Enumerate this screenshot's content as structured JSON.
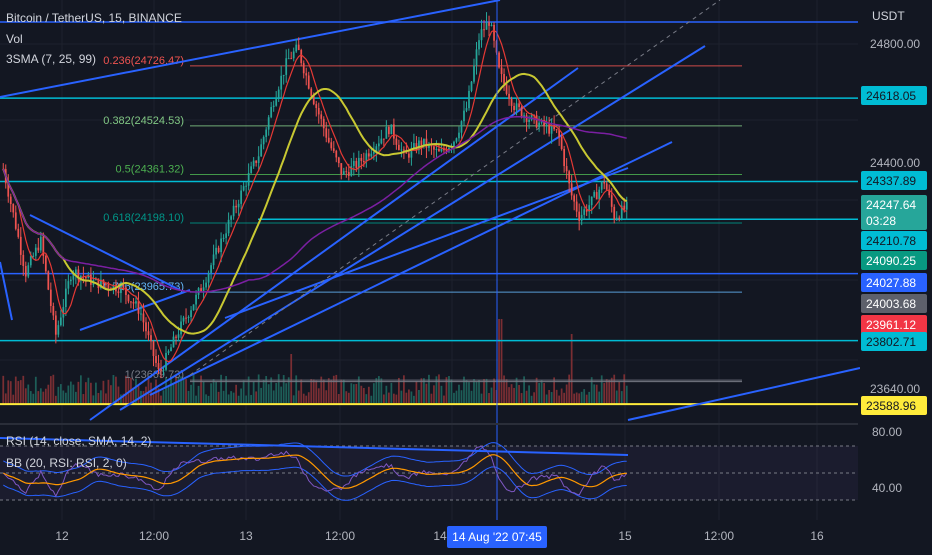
{
  "header": {
    "symbol_title": "Bitcoin / TetherUS, 15, BINANCE",
    "vol_label": "Vol",
    "sma_label": "3SMA (7, 25, 99)",
    "currency": "USDT"
  },
  "rsi_pane": {
    "rsi_label": "RSI (14, close, SMA, 14, 2)",
    "bb_label": "BB (20, RSI: RSI, 2, 0)",
    "axis_ticks": [
      "80.00",
      "40.00"
    ]
  },
  "colors": {
    "background": "#131722",
    "grid": "#1e222d",
    "candle_up": "#26a69a",
    "candle_down": "#ef5350",
    "trendline": "#2962ff",
    "cyan_level": "#00bcd4",
    "sma_short": "#e53935",
    "sma_mid": "#c8c832",
    "sma_long": "#7b1fa2",
    "rsi_line": "#7e57c2",
    "rsi_ma": "#ff9800",
    "bb_band": "#2962ff",
    "yellow_level": "#ffeb3b"
  },
  "chart_data": {
    "type": "candlestick",
    "title": "Bitcoin / TetherUS, 15, BINANCE",
    "y_axis_unit": "USDT",
    "ylim": [
      23560,
      24920
    ],
    "y_ticks": [
      24800,
      24400,
      23640
    ],
    "x_ticks": [
      "12",
      "12:00",
      "13",
      "12:00",
      "14",
      "15",
      "12:00",
      "16"
    ],
    "x_ticks_positions_days": [
      12,
      12.5,
      13,
      13.5,
      14,
      15,
      15.5,
      16
    ],
    "cursor_label": "14 Aug '22   07:45",
    "fibonacci": [
      {
        "ratio": "0.236",
        "price": 24726.47,
        "label": "0.236(24726.47)",
        "color": "#ef5350"
      },
      {
        "ratio": "0.382",
        "price": 24524.53,
        "label": "0.382(24524.53)",
        "color": "#81c784"
      },
      {
        "ratio": "0.5",
        "price": 24361.32,
        "label": "0.5(24361.32)",
        "color": "#4caf50"
      },
      {
        "ratio": "0.618",
        "price": 24198.1,
        "label": "0.618(24198.10)",
        "color": "#009688"
      },
      {
        "ratio": "0.786",
        "price": 23965.73,
        "label": "0.786(23965.73)",
        "color": "#64b5f6"
      },
      {
        "ratio": "1",
        "price": 23669.73,
        "label": "1(23669.73)",
        "color": "#787b86"
      }
    ],
    "price_labels": [
      {
        "value": "24618.05",
        "color": "#00bcd4"
      },
      {
        "value": "24337.89",
        "color": "#00bcd4"
      },
      {
        "value": "24247.64",
        "color": "#26a69a"
      },
      {
        "value": "03:28",
        "color": "#26a69a"
      },
      {
        "value": "24210.78",
        "color": "#00bcd4"
      },
      {
        "value": "24090.25",
        "color": "#089981"
      },
      {
        "value": "24027.88",
        "color": "#2962ff"
      },
      {
        "value": "24003.68",
        "color": "#5d606b"
      },
      {
        "value": "23961.12",
        "color": "#f23645"
      },
      {
        "value": "23802.71",
        "color": "#00bcd4"
      },
      {
        "value": "23588.96",
        "color": "#ffeb3b"
      }
    ],
    "ohlc_keypoints": [
      {
        "t": 0,
        "p": 24380
      },
      {
        "t": 10,
        "p": 24190
      },
      {
        "t": 18,
        "p": 24030
      },
      {
        "t": 30,
        "p": 24140
      },
      {
        "t": 42,
        "p": 23820
      },
      {
        "t": 55,
        "p": 24040
      },
      {
        "t": 72,
        "p": 24000
      },
      {
        "t": 95,
        "p": 23980
      },
      {
        "t": 110,
        "p": 23900
      },
      {
        "t": 125,
        "p": 23690
      },
      {
        "t": 140,
        "p": 23830
      },
      {
        "t": 160,
        "p": 23990
      },
      {
        "t": 178,
        "p": 24170
      },
      {
        "t": 195,
        "p": 24340
      },
      {
        "t": 205,
        "p": 24430
      },
      {
        "t": 218,
        "p": 24630
      },
      {
        "t": 228,
        "p": 24745
      },
      {
        "t": 236,
        "p": 24785
      },
      {
        "t": 250,
        "p": 24600
      },
      {
        "t": 262,
        "p": 24460
      },
      {
        "t": 272,
        "p": 24360
      },
      {
        "t": 285,
        "p": 24400
      },
      {
        "t": 300,
        "p": 24470
      },
      {
        "t": 310,
        "p": 24520
      },
      {
        "t": 322,
        "p": 24420
      },
      {
        "t": 335,
        "p": 24470
      },
      {
        "t": 350,
        "p": 24430
      },
      {
        "t": 362,
        "p": 24480
      },
      {
        "t": 372,
        "p": 24590
      },
      {
        "t": 382,
        "p": 24830
      },
      {
        "t": 390,
        "p": 24880
      },
      {
        "t": 398,
        "p": 24700
      },
      {
        "t": 410,
        "p": 24590
      },
      {
        "t": 422,
        "p": 24550
      },
      {
        "t": 435,
        "p": 24520
      },
      {
        "t": 445,
        "p": 24500
      },
      {
        "t": 455,
        "p": 24300
      },
      {
        "t": 462,
        "p": 24220
      },
      {
        "t": 472,
        "p": 24270
      },
      {
        "t": 482,
        "p": 24340
      },
      {
        "t": 490,
        "p": 24220
      },
      {
        "t": 500,
        "p": 24250
      }
    ],
    "volume_unit": "relative"
  }
}
